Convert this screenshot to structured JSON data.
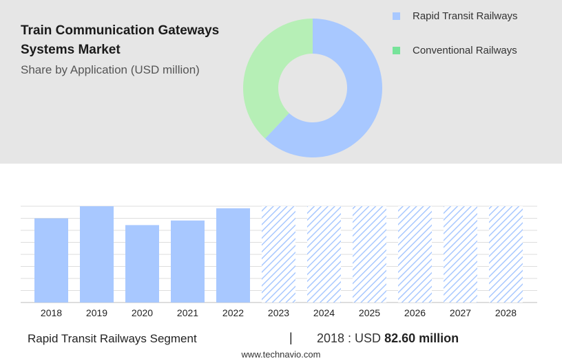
{
  "chart_data": [
    {
      "type": "pie",
      "title": "Train Communication Gateways Systems Market",
      "subtitle": "Share by Application (USD million)",
      "donut": true,
      "legend_position": "top-right",
      "slices": [
        {
          "label": "Rapid Transit Railways",
          "value": 62,
          "color": "#a8c8ff"
        },
        {
          "label": "Conventional Railways",
          "value": 38,
          "color": "#b6efb6"
        }
      ]
    },
    {
      "type": "bar",
      "categories": [
        "2018",
        "2019",
        "2020",
        "2021",
        "2022",
        "2023",
        "2024",
        "2025",
        "2026",
        "2027",
        "2028"
      ],
      "values": [
        82.6,
        94.5,
        76.0,
        80.5,
        92.5,
        null,
        null,
        null,
        null,
        null,
        null
      ],
      "forecast_categories": [
        "2023",
        "2024",
        "2025",
        "2026",
        "2027",
        "2028"
      ],
      "ylim": [
        0,
        94.5
      ],
      "grid": true,
      "bar_color": "#a8c8ff",
      "forecast_color": "#a8c8ff"
    }
  ],
  "footer": {
    "segment": "Rapid Transit Railways Segment",
    "divider": "|",
    "year_label": "2018 : USD ",
    "value_label": "82.60 million"
  },
  "source": "www.technavio.com"
}
